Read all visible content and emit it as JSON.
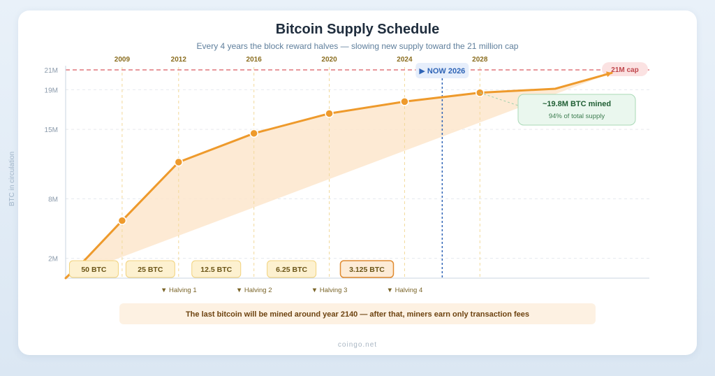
{
  "title": "Bitcoin Supply Schedule",
  "subtitle": "Every 4 years the block reward halves — slowing new supply toward the 21 million cap",
  "footer": "coingo.net",
  "colors": {
    "line": "#ee9a2c",
    "area": "#fde6cc",
    "cap": "#e0777b",
    "now": "#2f64b6",
    "grid": "#e6e9ee",
    "axis": "#c9d4e0",
    "year_label": "#8a6d1f",
    "reward_fill": "#fdf1d0",
    "reward_border": "#f1d27c",
    "reward_text": "#6a5416",
    "callout_fill": "#eaf7ee",
    "callout_border": "#a9d9b6",
    "callout_title": "#1f5e33",
    "callout_sub": "#3d7d50",
    "note_fill": "#fdf1e2",
    "note_text": "#6d4310"
  },
  "chart_data": {
    "type": "line",
    "title": "Bitcoin Supply Schedule",
    "subtitle": "Every 4 years the block reward halves — slowing new supply toward the 21 million cap",
    "xlabel": "",
    "ylabel": "BTC in circulation",
    "xlim": [
      2006,
      2037
    ],
    "ylim": [
      0,
      21
    ],
    "grid": true,
    "x_ticks": [
      2009,
      2012,
      2016,
      2020,
      2024,
      2028
    ],
    "y_ticks": [
      {
        "value": 2,
        "label": "2M"
      },
      {
        "value": 8,
        "label": "8M"
      },
      {
        "value": 15,
        "label": "15M"
      },
      {
        "value": 19,
        "label": "19M"
      },
      {
        "value": 21,
        "label": "21M"
      }
    ],
    "series": [
      {
        "values": [
          {
            "x": 2006,
            "y": 0
          },
          {
            "x": 2007,
            "y": 1.8
          },
          {
            "x": 2009,
            "y": 5.8
          },
          {
            "x": 2012,
            "y": 11.7
          },
          {
            "x": 2016,
            "y": 14.6
          },
          {
            "x": 2020,
            "y": 16.6
          },
          {
            "x": 2024,
            "y": 17.8
          },
          {
            "x": 2028,
            "y": 18.7
          },
          {
            "x": 2032,
            "y": 19.1
          },
          {
            "x": 2035,
            "y": 20.7
          }
        ],
        "markers": [
          2009,
          2012,
          2016,
          2020,
          2024,
          2028
        ]
      }
    ],
    "cap": {
      "value": 21,
      "label": "21M cap"
    },
    "now": {
      "x": 2026,
      "label": "▶ NOW 2026"
    },
    "rewards": [
      {
        "x": 2007.5,
        "label": "50 BTC"
      },
      {
        "x": 2010.5,
        "label": "25 BTC"
      },
      {
        "x": 2014,
        "label": "12.5 BTC"
      },
      {
        "x": 2018,
        "label": "6.25 BTC"
      },
      {
        "x": 2022,
        "label": "3.125 BTC",
        "highlight": true
      }
    ],
    "halvings": [
      {
        "x": 2012,
        "label": "▼ Halving 1"
      },
      {
        "x": 2016,
        "label": "▼ Halving 2"
      },
      {
        "x": 2020,
        "label": "▼ Halving 3"
      },
      {
        "x": 2024,
        "label": "▼ Halving 4"
      }
    ],
    "callout": {
      "x": 2028,
      "title": "~19.8M BTC mined",
      "subtitle": "94% of total supply"
    },
    "note": "The last bitcoin will be mined around year 2140 — after that, miners earn only transaction fees"
  }
}
